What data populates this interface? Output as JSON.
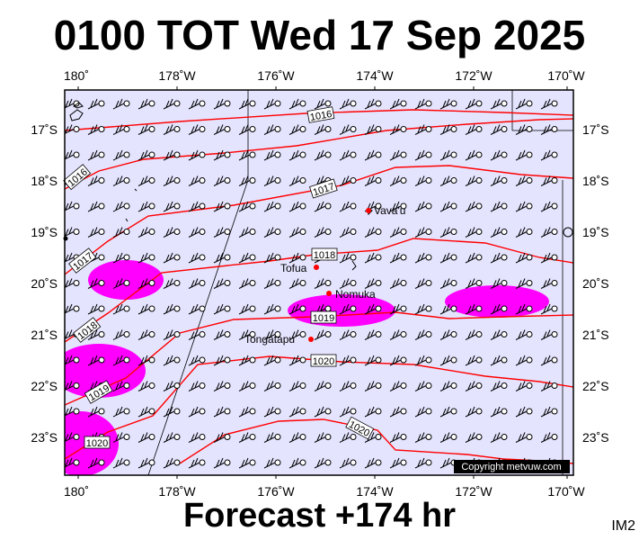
{
  "header": {
    "title": "0100 TOT Wed 17 Sep 2025"
  },
  "footer": {
    "forecast": "Forecast +174 hr",
    "code": "IM2"
  },
  "copyright": "Copyright metvuw.com",
  "map": {
    "background": "#e4e4ff",
    "isobar_color": "#ff0000",
    "rain_color": "#ff00ff",
    "lon_labels": [
      "180˚",
      "178˚W",
      "176˚W",
      "174˚W",
      "172˚W",
      "170˚W"
    ],
    "lat_labels": [
      "17˚S",
      "18˚S",
      "19˚S",
      "20˚S",
      "21˚S",
      "22˚S",
      "23˚S"
    ],
    "places": [
      {
        "name": "Vava'u"
      },
      {
        "name": "Tofua"
      },
      {
        "name": "Nomuka"
      },
      {
        "name": "Tongatapu"
      }
    ],
    "isobar_labels": [
      "1016",
      "1016",
      "1017",
      "1017",
      "1018",
      "1018",
      "1019",
      "1019",
      "1020",
      "1020",
      "1020"
    ]
  }
}
